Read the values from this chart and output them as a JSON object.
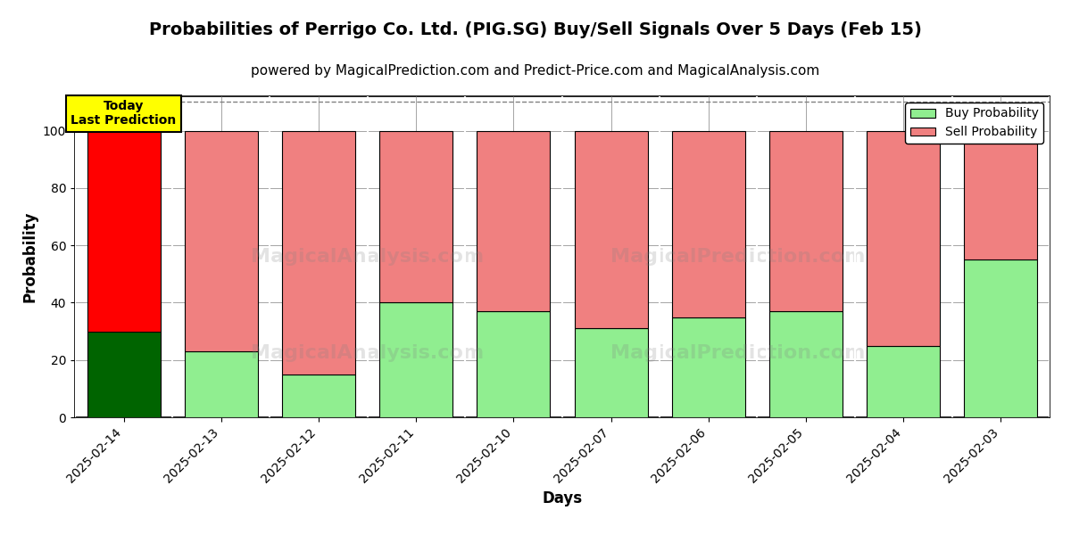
{
  "title": "Probabilities of Perrigo Co. Ltd. (PIG.SG) Buy/Sell Signals Over 5 Days (Feb 15)",
  "subtitle": "powered by MagicalPrediction.com and Predict-Price.com and MagicalAnalysis.com",
  "xlabel": "Days",
  "ylabel": "Probability",
  "dates": [
    "2025-02-14",
    "2025-02-13",
    "2025-02-12",
    "2025-02-11",
    "2025-02-10",
    "2025-02-07",
    "2025-02-06",
    "2025-02-05",
    "2025-02-04",
    "2025-02-03"
  ],
  "buy_probs": [
    30,
    23,
    15,
    40,
    37,
    31,
    35,
    37,
    25,
    55
  ],
  "sell_probs": [
    70,
    77,
    85,
    60,
    63,
    69,
    65,
    63,
    75,
    45
  ],
  "today_buy_color": "#006400",
  "today_sell_color": "#FF0000",
  "buy_color": "#90EE90",
  "sell_color": "#F08080",
  "today_label_bg": "#FFFF00",
  "today_label_text": "Today\nLast Prediction",
  "legend_buy": "Buy Probability",
  "legend_sell": "Sell Probability",
  "ylim": [
    0,
    112
  ],
  "yticks": [
    0,
    20,
    40,
    60,
    80,
    100
  ],
  "dashed_line_y": 110,
  "bar_width": 0.75,
  "title_fontsize": 14,
  "subtitle_fontsize": 11
}
